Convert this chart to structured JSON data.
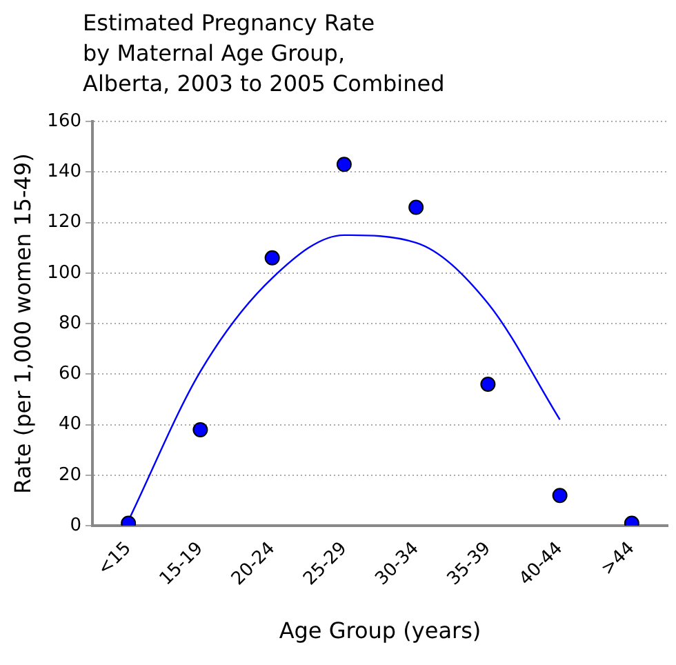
{
  "chart_data": {
    "type": "scatter",
    "title": "Estimated Pregnancy Rate\nby Maternal Age Group,\nAlberta, 2003 to 2005 Combined",
    "xlabel": "Age Group (years)",
    "ylabel": "Rate (per 1,000 women 15-49)",
    "categories": [
      "<15",
      "15-19",
      "20-24",
      "25-29",
      "30-34",
      "35-39",
      "40-44",
      ">44"
    ],
    "series": [
      {
        "type": "scatter",
        "color": "#0000ff",
        "marker": "circle",
        "values": [
          1,
          38,
          106,
          143,
          126,
          56,
          12,
          1
        ]
      },
      {
        "type": "line",
        "color": "#0000ff",
        "marker": "none",
        "values": [
          2,
          61,
          98,
          115,
          112,
          88,
          42,
          null
        ]
      }
    ],
    "ylim": [
      0,
      160
    ],
    "yticks": [
      0,
      20,
      40,
      60,
      80,
      100,
      120,
      140,
      160
    ],
    "grid": "y",
    "legend": false
  }
}
